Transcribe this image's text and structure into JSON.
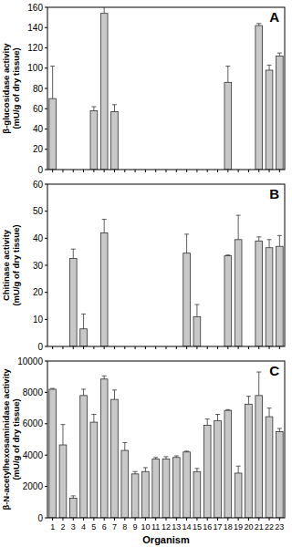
{
  "chart_data": [
    {
      "type": "bar",
      "title": "A",
      "ylabel": [
        "β-glucosidase activity",
        "(mU/g of dry tissue)"
      ],
      "categories": [
        "1",
        "2",
        "3",
        "4",
        "5",
        "6",
        "7",
        "8",
        "9",
        "10",
        "11",
        "12",
        "13",
        "14",
        "15",
        "16",
        "17",
        "18",
        "19",
        "20",
        "21",
        "22",
        "23"
      ],
      "values": [
        70,
        0,
        0,
        0,
        58,
        154,
        57,
        0,
        0,
        0,
        0,
        0,
        0,
        0,
        0,
        0,
        0,
        86,
        0,
        0,
        142,
        98,
        112
      ],
      "errors": [
        32,
        null,
        null,
        null,
        4,
        16,
        7,
        null,
        null,
        null,
        null,
        null,
        null,
        null,
        null,
        null,
        null,
        16,
        null,
        null,
        2,
        5,
        3
      ],
      "color": "#c8c8c8",
      "ylim": [
        0,
        160
      ],
      "yticks": [
        0,
        20,
        40,
        60,
        80,
        100,
        120,
        140,
        160
      ],
      "grid": false,
      "tick_labels": "y"
    },
    {
      "type": "bar",
      "title": "B",
      "ylabel": [
        "Chitinase activity",
        "(mU/g of dry tissue)"
      ],
      "categories": [
        "1",
        "2",
        "3",
        "4",
        "5",
        "6",
        "7",
        "8",
        "9",
        "10",
        "11",
        "12",
        "13",
        "14",
        "15",
        "16",
        "17",
        "18",
        "19",
        "20",
        "21",
        "22",
        "23"
      ],
      "values": [
        0,
        0,
        32.5,
        6.5,
        0,
        42,
        0,
        0,
        0,
        0,
        0,
        0,
        0,
        34.5,
        11,
        0,
        0,
        33.5,
        39.5,
        0,
        39,
        36.5,
        37
      ],
      "errors": [
        null,
        null,
        3.5,
        5.5,
        null,
        5,
        null,
        null,
        null,
        null,
        null,
        null,
        null,
        7,
        4.5,
        null,
        null,
        0.3,
        9,
        null,
        1.5,
        3,
        4
      ],
      "color": "#c8c8c8",
      "ylim": [
        0,
        60
      ],
      "yticks": [
        0,
        10,
        20,
        30,
        40,
        50,
        60
      ],
      "grid": false,
      "tick_labels": "y"
    },
    {
      "type": "bar",
      "title": "C",
      "ylabel": [
        "β-N-acetylhexosaminidase activity",
        "(mU/g of dry tissue)"
      ],
      "xlabel": "Organism",
      "categories": [
        "1",
        "2",
        "3",
        "4",
        "5",
        "6",
        "7",
        "8",
        "9",
        "10",
        "11",
        "12",
        "13",
        "14",
        "15",
        "16",
        "17",
        "18",
        "19",
        "20",
        "21",
        "22",
        "23"
      ],
      "values": [
        8200,
        4650,
        1250,
        7800,
        6100,
        8850,
        7550,
        4300,
        2800,
        2950,
        3750,
        3750,
        3850,
        4200,
        2950,
        5900,
        6200,
        6850,
        2850,
        7250,
        7800,
        6450,
        5500
      ],
      "errors": [
        50,
        1300,
        150,
        400,
        500,
        200,
        600,
        500,
        150,
        250,
        100,
        150,
        100,
        50,
        200,
        400,
        400,
        50,
        450,
        500,
        1500,
        550,
        200
      ],
      "color": "#c8c8c8",
      "ylim": [
        0,
        10000
      ],
      "yticks": [
        0,
        2000,
        4000,
        6000,
        8000,
        10000
      ],
      "grid": false
    }
  ]
}
